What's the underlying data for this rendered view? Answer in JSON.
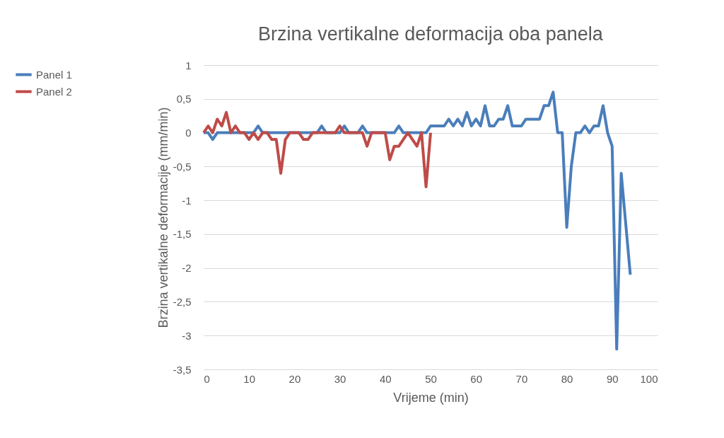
{
  "chart_data": {
    "type": "line",
    "title": "Brzina  vertikalne deformacija oba panela",
    "xlabel": "Vrijeme (min)",
    "ylabel": "Brzina vertikalne deformacije (mm/min)",
    "series": [
      {
        "name": "Panel 1",
        "color": "#4a7ebb",
        "x": [
          0,
          1,
          2,
          3,
          4,
          5,
          6,
          7,
          8,
          9,
          10,
          11,
          12,
          13,
          14,
          15,
          16,
          17,
          18,
          19,
          20,
          21,
          22,
          23,
          24,
          25,
          26,
          27,
          28,
          29,
          30,
          31,
          32,
          33,
          34,
          35,
          36,
          37,
          38,
          39,
          40,
          41,
          42,
          43,
          44,
          45,
          46,
          47,
          48,
          49,
          50,
          51,
          52,
          53,
          54,
          55,
          56,
          57,
          58,
          59,
          60,
          61,
          62,
          63,
          64,
          65,
          66,
          67,
          68,
          69,
          70,
          71,
          72,
          73,
          74,
          75,
          76,
          77,
          78,
          79,
          80,
          81,
          82,
          83,
          84,
          85,
          86,
          87,
          88,
          89,
          90,
          91,
          92,
          93,
          94
        ],
        "values": [
          0,
          0,
          -0.1,
          0,
          0,
          0,
          0,
          0,
          0,
          0,
          0,
          0,
          0.1,
          0,
          0,
          0,
          0,
          0,
          0,
          0,
          0,
          0,
          0,
          0,
          0,
          0,
          0.1,
          0,
          0,
          0,
          0,
          0.1,
          0,
          0,
          0,
          0.1,
          0,
          0,
          0,
          0,
          0,
          0,
          0,
          0.1,
          0,
          0,
          0,
          0,
          0,
          0,
          0.1,
          0.1,
          0.1,
          0.1,
          0.2,
          0.1,
          0.2,
          0.1,
          0.3,
          0.1,
          0.2,
          0.1,
          0.4,
          0.1,
          0.1,
          0.2,
          0.2,
          0.4,
          0.1,
          0.1,
          0.1,
          0.2,
          0.2,
          0.2,
          0.2,
          0.4,
          0.4,
          0.6,
          0,
          0,
          -1.4,
          -0.5,
          0,
          0,
          0.1,
          0,
          0.1,
          0.1,
          0.4,
          0,
          -0.2,
          -3.2,
          -0.6,
          -1.35,
          -2.1
        ]
      },
      {
        "name": "Panel 2",
        "color": "#be4b48",
        "x": [
          0,
          1,
          2,
          3,
          4,
          5,
          6,
          7,
          8,
          9,
          10,
          11,
          12,
          13,
          14,
          15,
          16,
          17,
          18,
          19,
          20,
          21,
          22,
          23,
          24,
          25,
          26,
          27,
          28,
          29,
          30,
          31,
          32,
          33,
          34,
          35,
          36,
          37,
          38,
          39,
          40,
          41,
          42,
          43,
          44,
          45,
          46,
          47,
          48,
          49,
          50
        ],
        "values": [
          0,
          0.1,
          0,
          0.2,
          0.1,
          0.3,
          0,
          0.1,
          0,
          0,
          -0.1,
          0,
          -0.1,
          0,
          0,
          -0.1,
          -0.1,
          -0.6,
          -0.1,
          0,
          0,
          0,
          -0.1,
          -0.1,
          0,
          0,
          0,
          0,
          0,
          0,
          0.1,
          0,
          0,
          0,
          0,
          0,
          -0.2,
          0,
          0,
          0,
          0,
          -0.4,
          -0.2,
          -0.2,
          -0.1,
          0,
          -0.1,
          -0.2,
          0,
          -0.8,
          0
        ]
      }
    ],
    "xlim": [
      0,
      100
    ],
    "xticks": [
      0,
      10,
      20,
      30,
      40,
      50,
      60,
      70,
      80,
      90,
      100
    ],
    "ylim": [
      -3.5,
      1
    ],
    "yticks": [
      {
        "value": -3.5,
        "label": "-3,5"
      },
      -3,
      {
        "value": -2.5,
        "label": "-2,5"
      },
      -2,
      {
        "value": -1.5,
        "label": "-1,5"
      },
      -1,
      {
        "value": -0.5,
        "label": "-0,5"
      },
      0,
      {
        "value": 0.5,
        "label": "0,5"
      },
      1
    ],
    "grid": "y",
    "legend": "left"
  }
}
